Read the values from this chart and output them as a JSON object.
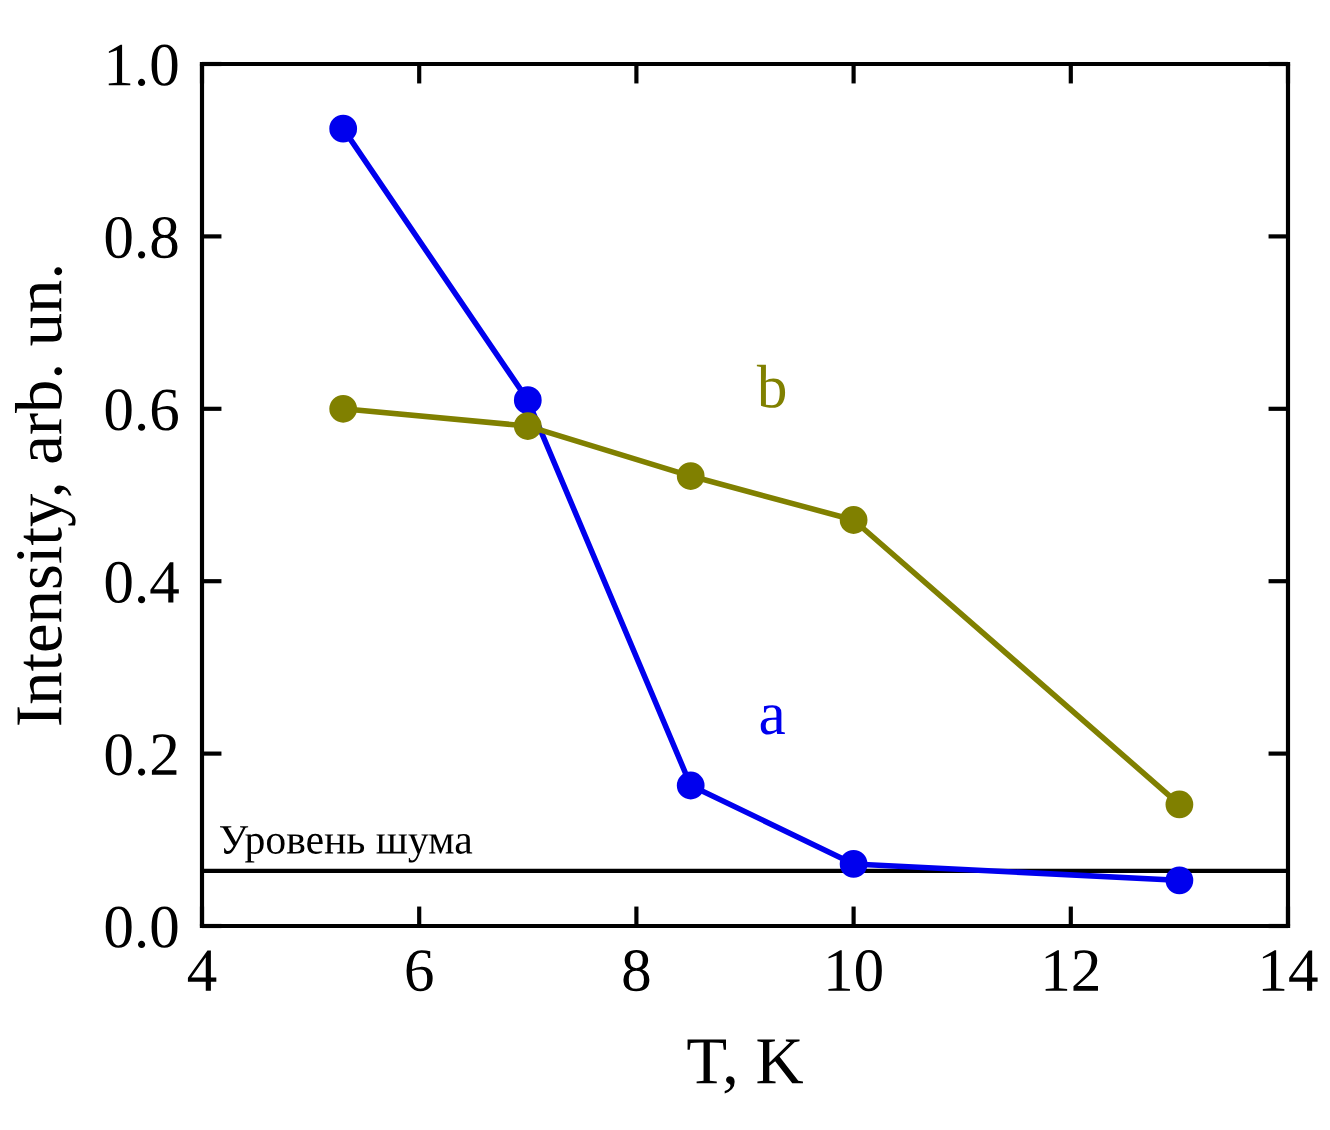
{
  "chart_data": {
    "type": "line",
    "xlabel": "T, K",
    "ylabel": "Intensity, arb. un.",
    "xlim": [
      4,
      14
    ],
    "xticks": [
      4,
      6,
      8,
      10,
      12,
      14
    ],
    "ylim": [
      0.0,
      1.0
    ],
    "yticks": [
      {
        "value": 0.0,
        "label": "0.0"
      },
      {
        "value": 0.2,
        "label": "0.2"
      },
      {
        "value": 0.4,
        "label": "0.4"
      },
      {
        "value": 0.6,
        "label": "0.6"
      },
      {
        "value": 0.8,
        "label": "0.8"
      },
      {
        "value": 1.0,
        "label": "1.0"
      }
    ],
    "x": [
      5.3,
      7.0,
      8.5,
      10.0,
      13.0
    ],
    "series": [
      {
        "name": "a",
        "color": "#0000ee",
        "values": [
          0.925,
          0.61,
          0.163,
          0.072,
          0.053
        ]
      },
      {
        "name": "b",
        "color": "#808000",
        "values": [
          0.6,
          0.58,
          0.522,
          0.471,
          0.141
        ]
      }
    ],
    "marker": "circle",
    "line_style": "solid",
    "grid": false,
    "legend": false,
    "ref_lines": [
      {
        "axis": "y",
        "value": 0.064,
        "label": "Уровень шума",
        "color": "#000000"
      }
    ]
  }
}
